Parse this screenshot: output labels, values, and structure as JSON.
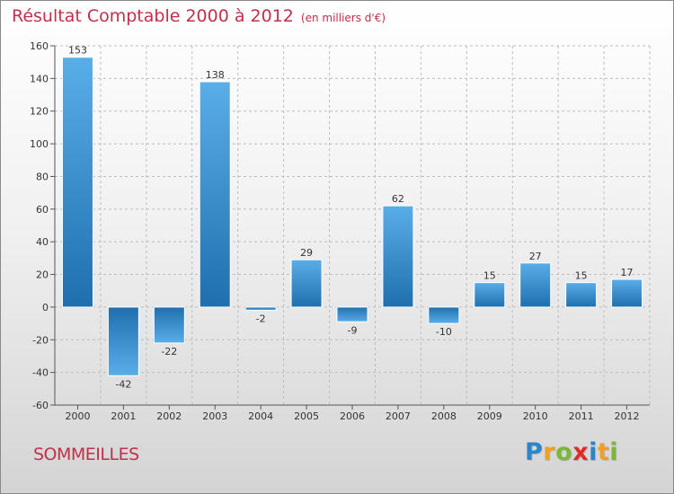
{
  "header": {
    "title": "Résultat Comptable 2000 à 2012",
    "subtitle": "(en milliers d'€)"
  },
  "footer": {
    "city": "SOMMEILLES",
    "logo": {
      "letters": [
        {
          "char": "P",
          "color": "#2a86c8"
        },
        {
          "char": "r",
          "color": "#f0a020"
        },
        {
          "char": "o",
          "color": "#7ab83a"
        },
        {
          "char": "x",
          "color": "#e02a2a"
        },
        {
          "char": "i",
          "color": "#2a86c8"
        },
        {
          "char": "t",
          "color": "#f0a020"
        },
        {
          "char": "i",
          "color": "#7ab83a"
        }
      ]
    }
  },
  "chart_data": {
    "type": "bar",
    "categories": [
      "2000",
      "2001",
      "2002",
      "2003",
      "2004",
      "2005",
      "2006",
      "2007",
      "2008",
      "2009",
      "2010",
      "2011",
      "2012"
    ],
    "values": [
      153,
      -42,
      -22,
      138,
      -2,
      29,
      -9,
      62,
      -10,
      15,
      27,
      15,
      17
    ],
    "value_labels": [
      "153",
      "-42",
      "-22",
      "138",
      "-2",
      "29",
      "-9",
      "62",
      "-10",
      "15",
      "27",
      "15",
      "17"
    ],
    "ylim": [
      -60,
      160
    ],
    "yticks": [
      -60,
      -40,
      -20,
      0,
      20,
      40,
      60,
      80,
      100,
      120,
      140,
      160
    ],
    "grid": true,
    "colors": {
      "bar_light": "#5aaee8",
      "bar_dark": "#1f6fae",
      "grid": "#bdbdbd"
    }
  }
}
